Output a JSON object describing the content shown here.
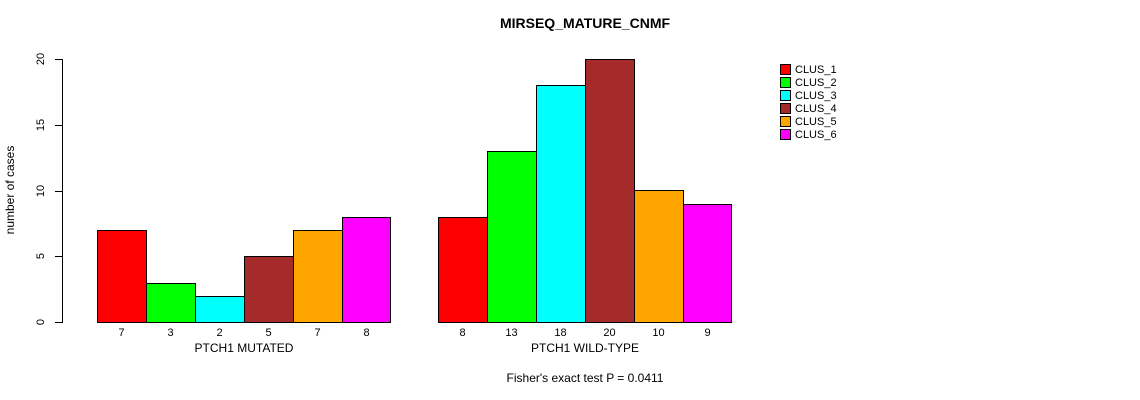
{
  "title": "MIRSEQ_MATURE_CNMF",
  "footer": "Fisher's exact test P = 0.0411",
  "chart_data": {
    "type": "bar",
    "title": "MIRSEQ_MATURE_CNMF",
    "xlabel": "",
    "ylabel": "number of cases",
    "ylim": [
      0,
      20
    ],
    "yticks": [
      0,
      5,
      10,
      15,
      20
    ],
    "grid": false,
    "legend_position": "right",
    "bar_value_labels": true,
    "categories": [
      "CLUS_1",
      "CLUS_2",
      "CLUS_3",
      "CLUS_4",
      "CLUS_5",
      "CLUS_6"
    ],
    "series_colors": [
      "#FF0000",
      "#00FF00",
      "#00FFFF",
      "#A52A2A",
      "#FFA500",
      "#FF00FF"
    ],
    "groups": [
      {
        "label": "PTCH1 MUTATED",
        "values": [
          7,
          3,
          2,
          5,
          7,
          8
        ]
      },
      {
        "label": "PTCH1 WILD-TYPE",
        "values": [
          8,
          13,
          18,
          20,
          10,
          9
        ]
      }
    ],
    "legend": [
      {
        "label": "CLUS_1",
        "color": "#FF0000"
      },
      {
        "label": "CLUS_2",
        "color": "#00FF00"
      },
      {
        "label": "CLUS_3",
        "color": "#00FFFF"
      },
      {
        "label": "CLUS_4",
        "color": "#A52A2A"
      },
      {
        "label": "CLUS_5",
        "color": "#FFA500"
      },
      {
        "label": "CLUS_6",
        "color": "#FF00FF"
      }
    ],
    "annotation": "Fisher's exact test P = 0.0411"
  }
}
